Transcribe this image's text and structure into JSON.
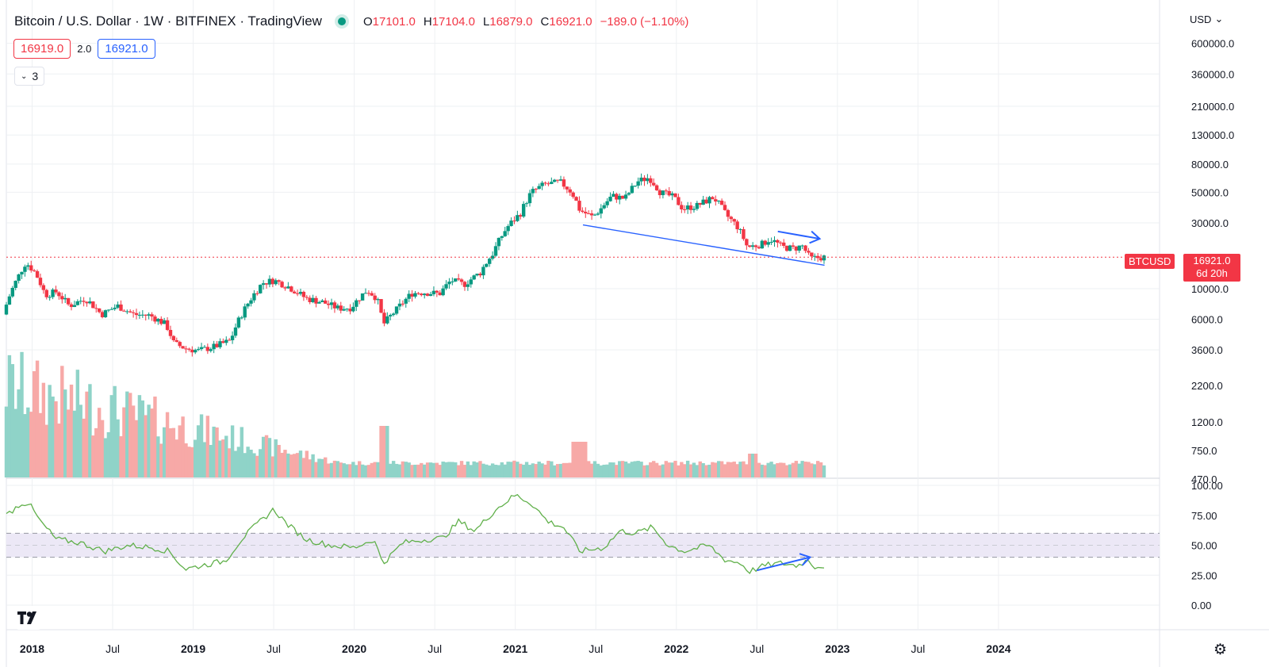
{
  "header": {
    "title": "Bitcoin / U.S. Dollar · 1W · BITFINEX · TradingView",
    "ohlc": {
      "o_label": "O",
      "o": "17101.0",
      "h_label": "H",
      "h": "17104.0",
      "l_label": "L",
      "l": "16879.0",
      "c_label": "C",
      "c": "16921.0",
      "change": "−189.0 (−1.10%)"
    },
    "bid": "16919.0",
    "spread": "2.0",
    "ask": "16921.0",
    "indicator_count": "3",
    "currency": "USD"
  },
  "colors": {
    "up": "#089981",
    "down": "#f23645",
    "vol_up": "#8fd3c8",
    "vol_down": "#f7a9a7",
    "rsi_line": "#60b04a",
    "rsi_band": "#ece8f6",
    "annotation": "#2962ff",
    "grid": "#eef0f3"
  },
  "icons": {
    "logo": "tv-logo-icon",
    "settings": "gear-icon",
    "dropdown": "chevron-down-icon"
  },
  "last_price": {
    "symbol": "BTCUSD",
    "price": "16921.0",
    "countdown": "6d 20h"
  },
  "chart_data": {
    "type": "candlestick",
    "scale": "log",
    "price_axis_labels": [
      "600000.0",
      "360000.0",
      "210000.0",
      "130000.0",
      "80000.0",
      "50000.0",
      "30000.0",
      "10000.0",
      "6000.0",
      "3600.0",
      "2200.0",
      "1200.0",
      "750.0",
      "470.0"
    ],
    "price_axis_values": [
      600000,
      360000,
      210000,
      130000,
      80000,
      50000,
      30000,
      10000,
      6000,
      3600,
      2200,
      1200,
      750,
      470
    ],
    "rsi_axis_labels": [
      "100.00",
      "75.00",
      "50.00",
      "25.00",
      "0.00"
    ],
    "rsi_axis_values": [
      100,
      75,
      50,
      25,
      0
    ],
    "rsi_band": [
      40,
      60
    ],
    "time_axis": [
      {
        "label": "2018",
        "bold": true,
        "date": 2018.0
      },
      {
        "label": "Jul",
        "bold": false,
        "date": 2018.5
      },
      {
        "label": "2019",
        "bold": true,
        "date": 2019.0
      },
      {
        "label": "Jul",
        "bold": false,
        "date": 2019.5
      },
      {
        "label": "2020",
        "bold": true,
        "date": 2020.0
      },
      {
        "label": "Jul",
        "bold": false,
        "date": 2020.5
      },
      {
        "label": "2021",
        "bold": true,
        "date": 2021.0
      },
      {
        "label": "Jul",
        "bold": false,
        "date": 2021.5
      },
      {
        "label": "2022",
        "bold": true,
        "date": 2022.0
      },
      {
        "label": "Jul",
        "bold": false,
        "date": 2022.5
      },
      {
        "label": "2023",
        "bold": true,
        "date": 2023.0
      },
      {
        "label": "Jul",
        "bold": false,
        "date": 2023.5
      },
      {
        "label": "2024",
        "bold": true,
        "date": 2024.0
      }
    ],
    "x_range": [
      2017.84,
      2025.0
    ],
    "price_keypoints": [
      [
        2017.84,
        6500
      ],
      [
        2017.93,
        12000
      ],
      [
        2017.98,
        15500
      ],
      [
        2018.04,
        13000
      ],
      [
        2018.1,
        9000
      ],
      [
        2018.17,
        9500
      ],
      [
        2018.25,
        7500
      ],
      [
        2018.35,
        8500
      ],
      [
        2018.45,
        6500
      ],
      [
        2018.55,
        7500
      ],
      [
        2018.65,
        6500
      ],
      [
        2018.75,
        6400
      ],
      [
        2018.85,
        5500
      ],
      [
        2018.9,
        4000
      ],
      [
        2018.97,
        3700
      ],
      [
        2019.05,
        3550
      ],
      [
        2019.15,
        3800
      ],
      [
        2019.25,
        4200
      ],
      [
        2019.35,
        7500
      ],
      [
        2019.45,
        11000
      ],
      [
        2019.52,
        11500
      ],
      [
        2019.6,
        10500
      ],
      [
        2019.72,
        8500
      ],
      [
        2019.82,
        8000
      ],
      [
        2019.92,
        7200
      ],
      [
        2020.0,
        7300
      ],
      [
        2020.1,
        9800
      ],
      [
        2020.16,
        8500
      ],
      [
        2020.2,
        5500
      ],
      [
        2020.28,
        7000
      ],
      [
        2020.38,
        9300
      ],
      [
        2020.45,
        9400
      ],
      [
        2020.55,
        9200
      ],
      [
        2020.62,
        11500
      ],
      [
        2020.7,
        10700
      ],
      [
        2020.8,
        13000
      ],
      [
        2020.88,
        18000
      ],
      [
        2020.97,
        28000
      ],
      [
        2021.05,
        35000
      ],
      [
        2021.12,
        50000
      ],
      [
        2021.2,
        57000
      ],
      [
        2021.3,
        59000
      ],
      [
        2021.37,
        50000
      ],
      [
        2021.42,
        37000
      ],
      [
        2021.5,
        33000
      ],
      [
        2021.55,
        38000
      ],
      [
        2021.62,
        47000
      ],
      [
        2021.7,
        45000
      ],
      [
        2021.78,
        60000
      ],
      [
        2021.85,
        64000
      ],
      [
        2021.92,
        50000
      ],
      [
        2022.0,
        46000
      ],
      [
        2022.06,
        38000
      ],
      [
        2022.15,
        40000
      ],
      [
        2022.25,
        46000
      ],
      [
        2022.33,
        34000
      ],
      [
        2022.4,
        28000
      ],
      [
        2022.46,
        20000
      ],
      [
        2022.55,
        21000
      ],
      [
        2022.6,
        23000
      ],
      [
        2022.68,
        20000
      ],
      [
        2022.75,
        19500
      ],
      [
        2022.8,
        20500
      ],
      [
        2022.85,
        16500
      ],
      [
        2022.92,
        16900
      ]
    ],
    "rsi_keypoints": [
      [
        2017.84,
        75
      ],
      [
        2017.93,
        85
      ],
      [
        2017.98,
        85
      ],
      [
        2018.05,
        70
      ],
      [
        2018.15,
        55
      ],
      [
        2018.3,
        52
      ],
      [
        2018.45,
        45
      ],
      [
        2018.6,
        50
      ],
      [
        2018.75,
        48
      ],
      [
        2018.85,
        45
      ],
      [
        2018.95,
        30
      ],
      [
        2019.05,
        33
      ],
      [
        2019.2,
        37
      ],
      [
        2019.3,
        55
      ],
      [
        2019.4,
        68
      ],
      [
        2019.5,
        80
      ],
      [
        2019.58,
        68
      ],
      [
        2019.7,
        55
      ],
      [
        2019.85,
        50
      ],
      [
        2020.0,
        48
      ],
      [
        2020.12,
        55
      ],
      [
        2020.18,
        35
      ],
      [
        2020.3,
        52
      ],
      [
        2020.45,
        55
      ],
      [
        2020.55,
        56
      ],
      [
        2020.65,
        70
      ],
      [
        2020.75,
        62
      ],
      [
        2020.88,
        80
      ],
      [
        2021.0,
        92
      ],
      [
        2021.1,
        85
      ],
      [
        2021.2,
        70
      ],
      [
        2021.3,
        65
      ],
      [
        2021.4,
        45
      ],
      [
        2021.55,
        48
      ],
      [
        2021.65,
        62
      ],
      [
        2021.75,
        60
      ],
      [
        2021.85,
        65
      ],
      [
        2021.95,
        50
      ],
      [
        2022.05,
        45
      ],
      [
        2022.2,
        50
      ],
      [
        2022.3,
        38
      ],
      [
        2022.4,
        35
      ],
      [
        2022.45,
        28
      ],
      [
        2022.55,
        33
      ],
      [
        2022.65,
        35
      ],
      [
        2022.75,
        33
      ],
      [
        2022.82,
        38
      ],
      [
        2022.86,
        32
      ],
      [
        2022.92,
        33
      ]
    ]
  }
}
